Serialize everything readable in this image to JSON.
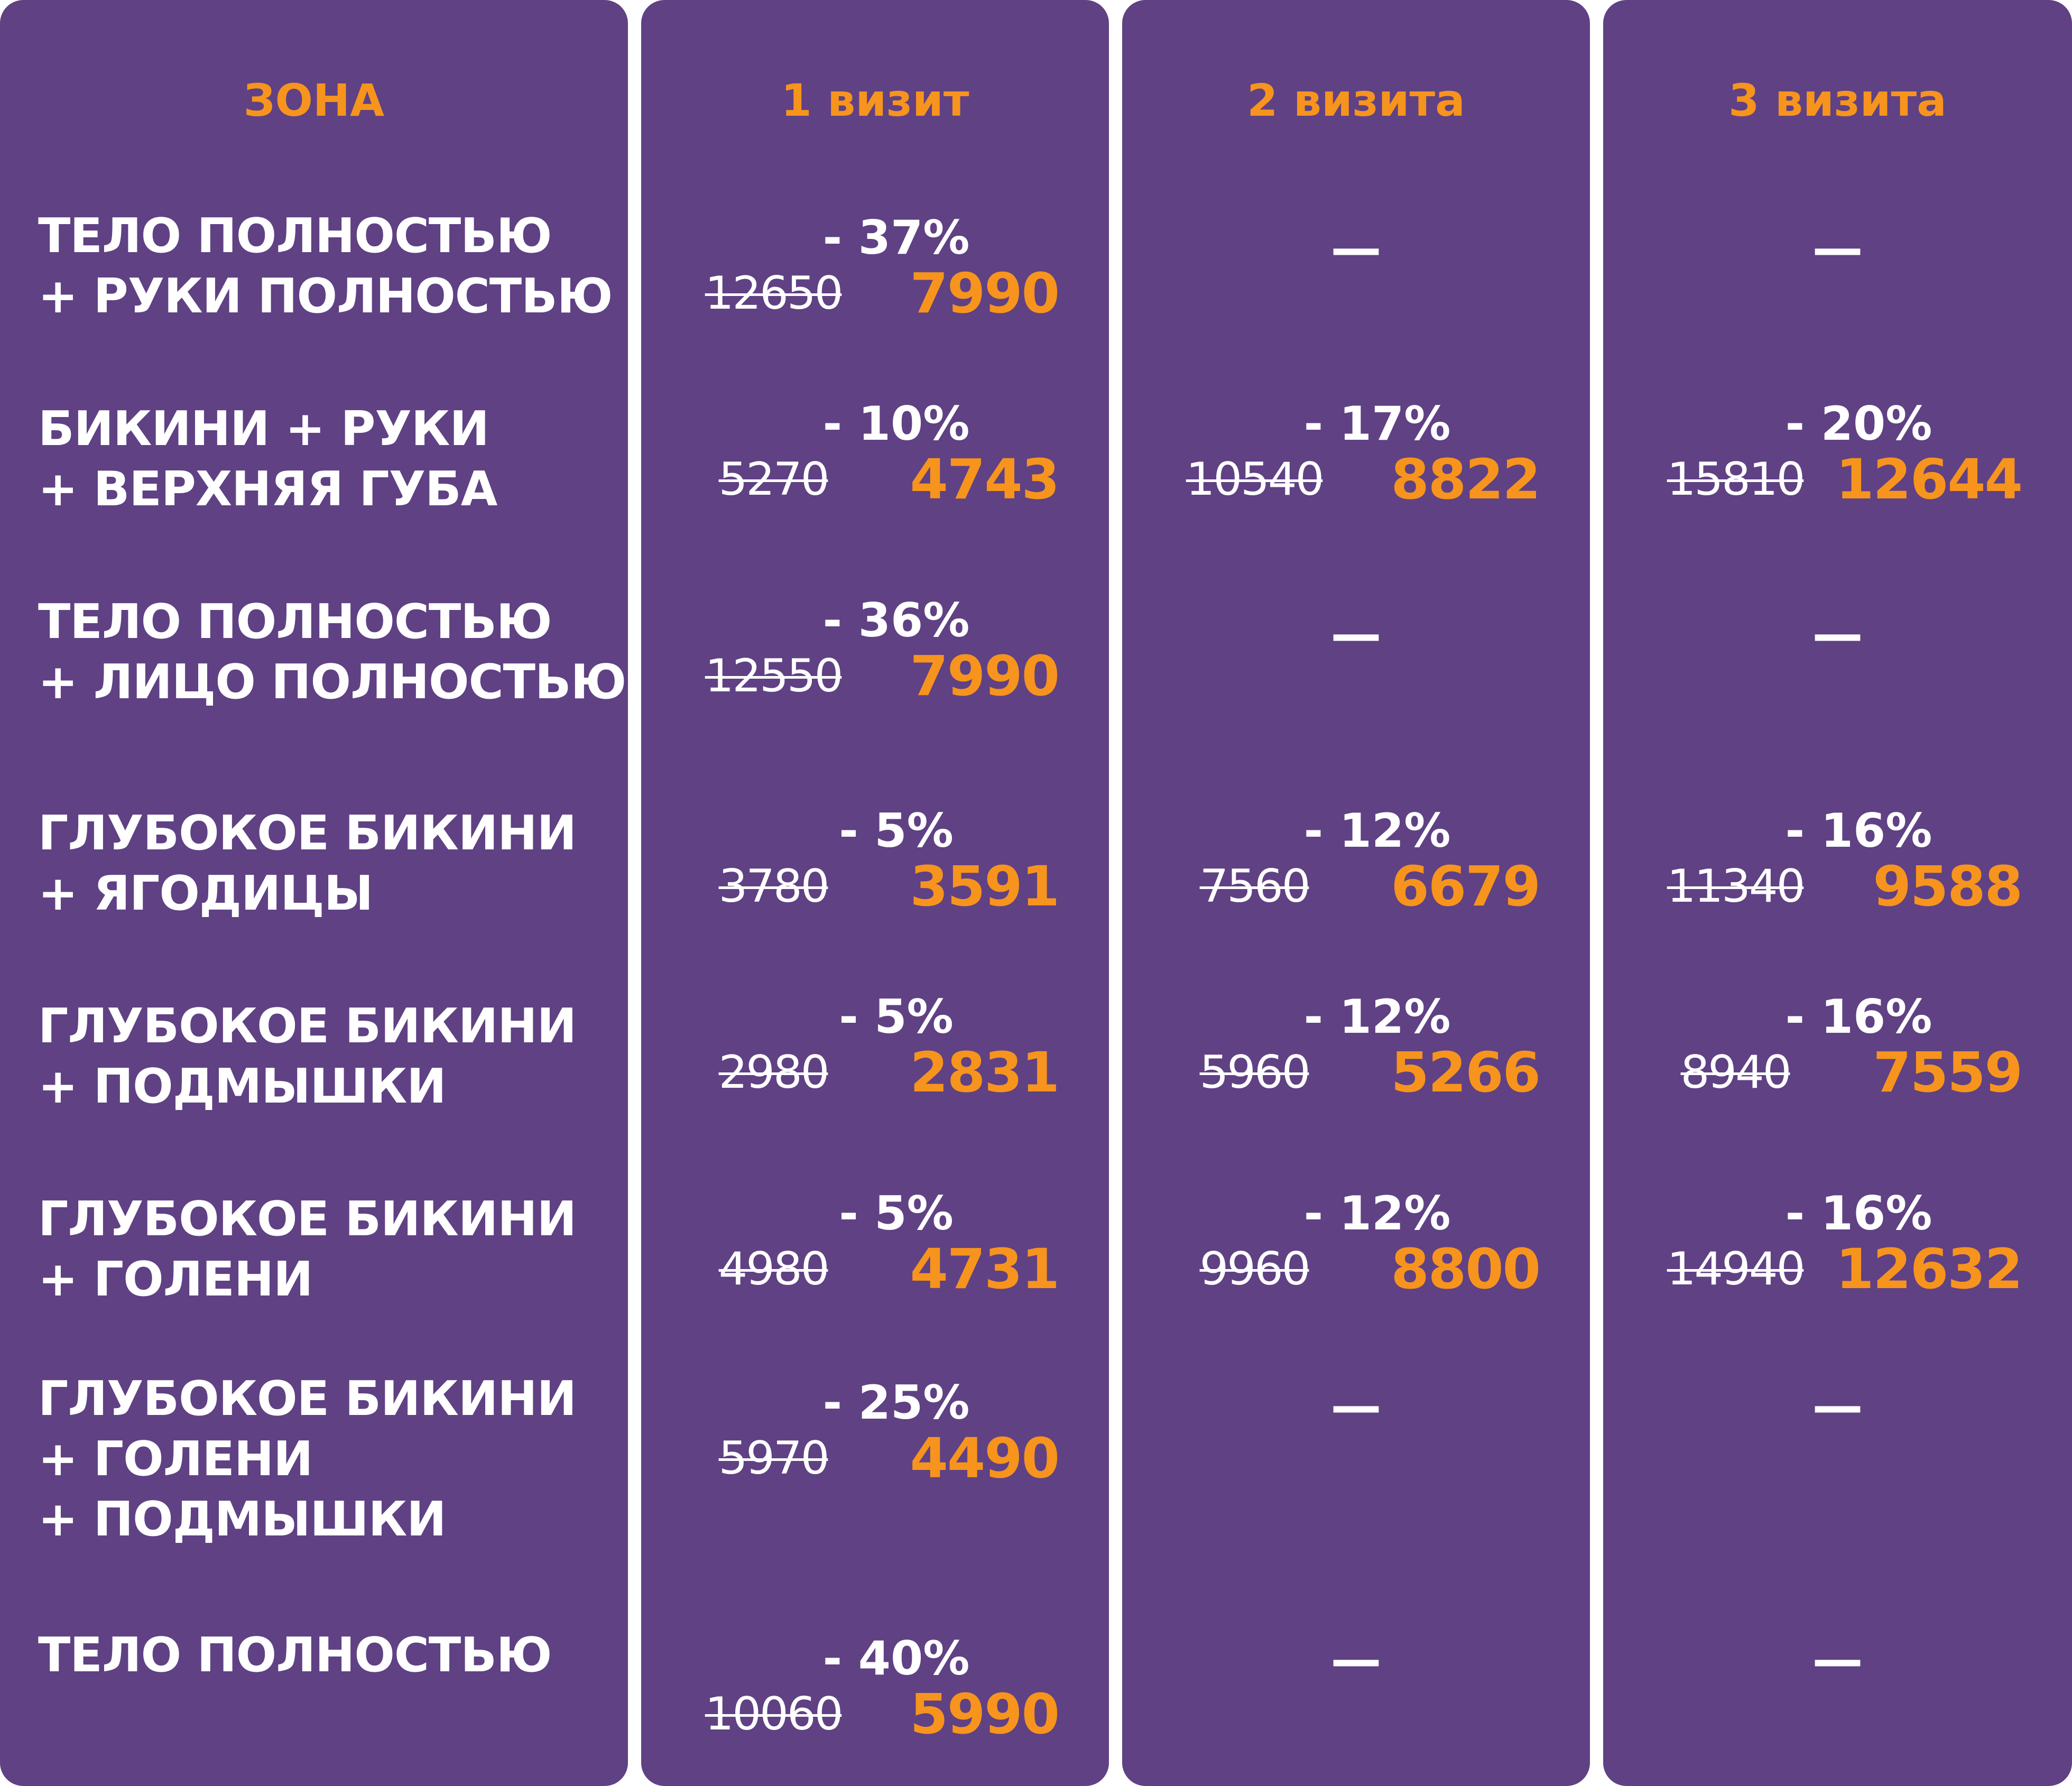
{
  "headers": {
    "zone": "ЗОНА",
    "visit1": "1 визит",
    "visit2": "2 визита",
    "visit3": "3 визита"
  },
  "dash": "—",
  "rows": [
    {
      "zone": [
        "ТЕЛО ПОЛНОСТЬЮ",
        "+ РУКИ ПОЛНОСТЬЮ"
      ],
      "visit1": {
        "discount": "- 37%",
        "old": "12650",
        "new": "7990"
      },
      "visit2": null,
      "visit3": null
    },
    {
      "zone": [
        "БИКИНИ + РУКИ",
        "+ ВЕРХНЯЯ ГУБА"
      ],
      "visit1": {
        "discount": "- 10%",
        "old": "5270",
        "new": "4743"
      },
      "visit2": {
        "discount": "- 17%",
        "old": "10540",
        "new": "8822"
      },
      "visit3": {
        "discount": "- 20%",
        "old": "15810",
        "new": "12644"
      }
    },
    {
      "zone": [
        "ТЕЛО ПОЛНОСТЬЮ",
        "+ ЛИЦО ПОЛНОСТЬЮ"
      ],
      "visit1": {
        "discount": "- 36%",
        "old": "12550",
        "new": "7990"
      },
      "visit2": null,
      "visit3": null
    },
    {
      "zone": [
        "ГЛУБОКОЕ БИКИНИ",
        "+ ЯГОДИЦЫ"
      ],
      "visit1": {
        "discount": "- 5%",
        "old": "3780",
        "new": "3591"
      },
      "visit2": {
        "discount": "- 12%",
        "old": "7560",
        "new": "6679"
      },
      "visit3": {
        "discount": "- 16%",
        "old": "11340",
        "new": "9588"
      }
    },
    {
      "zone": [
        "ГЛУБОКОЕ БИКИНИ",
        "+ ПОДМЫШКИ"
      ],
      "visit1": {
        "discount": "- 5%",
        "old": "2980",
        "new": "2831"
      },
      "visit2": {
        "discount": "- 12%",
        "old": "5960",
        "new": "5266"
      },
      "visit3": {
        "discount": "- 16%",
        "old": "8940",
        "new": "7559"
      }
    },
    {
      "zone": [
        "ГЛУБОКОЕ БИКИНИ",
        "+ ГОЛЕНИ"
      ],
      "visit1": {
        "discount": "- 5%",
        "old": "4980",
        "new": "4731"
      },
      "visit2": {
        "discount": "- 12%",
        "old": "9960",
        "new": "8800"
      },
      "visit3": {
        "discount": "- 16%",
        "old": "14940",
        "new": "12632"
      }
    },
    {
      "zone": [
        "ГЛУБОКОЕ БИКИНИ",
        "+ ГОЛЕНИ",
        "+ ПОДМЫШКИ"
      ],
      "visit1": {
        "discount": "- 25%",
        "old": "5970",
        "new": "4490"
      },
      "visit2": null,
      "visit3": null
    },
    {
      "zone": [
        "ТЕЛО ПОЛНОСТЬЮ"
      ],
      "visit1": {
        "discount": "- 40%",
        "old": "10060",
        "new": "5990"
      },
      "visit2": null,
      "visit3": null
    }
  ],
  "colors": {
    "panel": "#5f4184",
    "accent": "#f7941d",
    "text": "#ffffff"
  }
}
